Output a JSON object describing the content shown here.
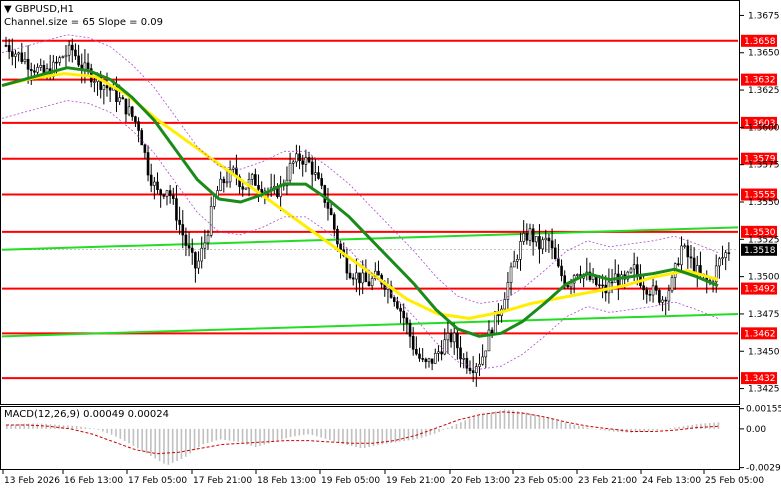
{
  "header": {
    "symbol": "GBPUSD,H1",
    "indicator": "Channel.size = 65 Slope = 0.09"
  },
  "macd": {
    "label": "MACD(12,26,9) 0.00049 0.00024",
    "ticks": [
      "0.00155",
      "0.00",
      "-0.00297"
    ]
  },
  "chart_data": {
    "type": "line",
    "title": "GBPUSD,H1",
    "y_ticks": [
      "1.3675",
      "1.3650",
      "1.3625",
      "1.3600",
      "1.3575",
      "1.3550",
      "1.3525",
      "1.3500",
      "1.3475",
      "1.3450",
      "1.3425"
    ],
    "x_ticks": [
      "13 Feb 2026",
      "16 Feb 13:00",
      "17 Feb 05:00",
      "17 Feb 21:00",
      "18 Feb 13:00",
      "19 Feb 05:00",
      "19 Feb 21:00",
      "20 Feb 13:00",
      "23 Feb 05:00",
      "23 Feb 21:00",
      "24 Feb 13:00",
      "25 Feb 05:00"
    ],
    "levels": [
      "1.3658",
      "1.3632",
      "1.3603",
      "1.3579",
      "1.3555",
      "1.3530",
      "1.3492",
      "1.3462",
      "1.3432"
    ],
    "current_price": "1.3518",
    "colors": {
      "level": "#ff0000",
      "fast_ma": "#1a8a1a",
      "slow_ma": "#ffee00",
      "channel": "#22dd22",
      "candle": "#000000",
      "macd_hist": "#c0c0c0",
      "macd_signal": "#cc0000"
    },
    "price_path": [
      1.3655,
      1.365,
      1.3645,
      1.364,
      1.3635,
      1.364,
      1.3648,
      1.3652,
      1.364,
      1.3635,
      1.363,
      1.3625,
      1.3618,
      1.361,
      1.36,
      1.357,
      1.3555,
      1.356,
      1.354,
      1.352,
      1.3505,
      1.3525,
      1.3555,
      1.3565,
      1.357,
      1.356,
      1.3565,
      1.356,
      1.3555,
      1.356,
      1.3575,
      1.358,
      1.3575,
      1.356,
      1.3545,
      1.352,
      1.3505,
      1.35,
      1.3495,
      1.35,
      1.3495,
      1.3485,
      1.347,
      1.345,
      1.344,
      1.3445,
      1.3455,
      1.346,
      1.3445,
      1.344,
      1.3445,
      1.3465,
      1.348,
      1.35,
      1.352,
      1.353,
      1.352,
      1.3525,
      1.3505,
      1.3495,
      1.3505,
      1.35,
      1.3495,
      1.349,
      1.35,
      1.3495,
      1.3505,
      1.3495,
      1.349,
      1.3485,
      1.3495,
      1.352,
      1.351,
      1.35,
      1.3495,
      1.351,
      1.3518
    ],
    "fast_ma": [
      1.3628,
      1.3632,
      1.3636,
      1.364,
      1.3638,
      1.3632,
      1.362,
      1.3605,
      1.3585,
      1.3565,
      1.3552,
      1.355,
      1.3555,
      1.3562,
      1.3562,
      1.3552,
      1.354,
      1.3525,
      1.351,
      1.3495,
      1.3478,
      1.3465,
      1.346,
      1.3462,
      1.347,
      1.3482,
      1.3495,
      1.3502,
      1.3498,
      1.35,
      1.3502,
      1.3505,
      1.35,
      1.3494
    ],
    "slow_ma": [
      1.3628,
      1.3633,
      1.3636,
      1.3634,
      1.3622,
      1.3605,
      1.359,
      1.3575,
      1.356,
      1.3545,
      1.353,
      1.3515,
      1.35,
      1.3485,
      1.3475,
      1.3472,
      1.3476,
      1.3482,
      1.3486,
      1.349,
      1.3494,
      1.35,
      1.3504,
      1.3498
    ],
    "channel_upper": [
      1.3518,
      1.3533
    ],
    "channel_lower": [
      1.346,
      1.3475
    ],
    "macd_hist": [
      0.0003,
      0.0004,
      0.0004,
      0.0003,
      0.0002,
      0.0,
      -0.0005,
      -0.0012,
      -0.002,
      -0.0028,
      -0.0022,
      -0.0012,
      -0.0008,
      -0.001,
      -0.0014,
      -0.001,
      -0.0006,
      -0.0004,
      -0.0008,
      -0.0012,
      -0.0015,
      -0.0012,
      -0.001,
      -0.0008,
      -0.0004,
      0.0002,
      0.0008,
      0.0012,
      0.0015,
      0.0013,
      0.001,
      0.0006,
      0.0003,
      0.0,
      -0.0002,
      -0.0003,
      -0.0002,
      0.0,
      0.0002,
      0.0004,
      0.0005
    ],
    "macd_signal": [
      0.0003,
      0.0003,
      0.0002,
      0.0,
      -0.0004,
      -0.001,
      -0.0016,
      -0.0019,
      -0.0018,
      -0.0015,
      -0.0012,
      -0.0011,
      -0.001,
      -0.0009,
      -0.0009,
      -0.001,
      -0.0011,
      -0.0011,
      -0.0009,
      -0.0005,
      0.0001,
      0.0007,
      0.0011,
      0.0013,
      0.0012,
      0.0009,
      0.0005,
      0.0002,
      0.0,
      -0.0002,
      -0.0002,
      -0.0001,
      0.0001,
      0.0002
    ]
  }
}
